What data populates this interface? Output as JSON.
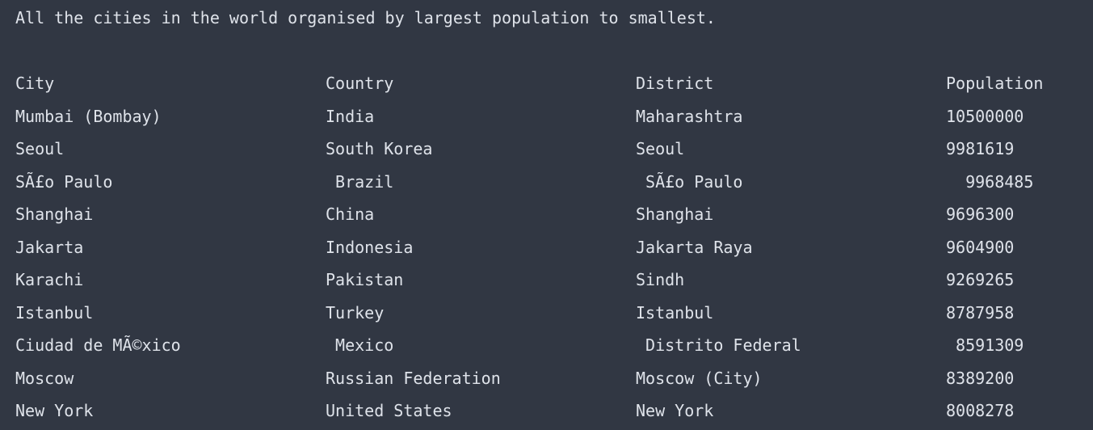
{
  "intro": "All the cities in the world organised by largest population to smallest.",
  "table": {
    "header": [
      "City",
      "Country",
      "District",
      "Population"
    ],
    "rows": [
      [
        "Mumbai (Bombay)",
        "India",
        "Maharashtra",
        "10500000"
      ],
      [
        "Seoul",
        "South Korea",
        "Seoul",
        "9981619"
      ],
      [
        "SÃ£o Paulo",
        " Brazil",
        " SÃ£o Paulo",
        "  9968485"
      ],
      [
        "Shanghai",
        "China",
        "Shanghai",
        "9696300"
      ],
      [
        "Jakarta",
        "Indonesia",
        "Jakarta Raya",
        "9604900"
      ],
      [
        "Karachi",
        "Pakistan",
        "Sindh",
        "9269265"
      ],
      [
        "Istanbul",
        "Turkey",
        "Istanbul",
        "8787958"
      ],
      [
        "Ciudad de MÃ©xico",
        " Mexico",
        " Distrito Federal",
        " 8591309"
      ],
      [
        "Moscow",
        "Russian Federation",
        "Moscow (City)",
        "8389200"
      ],
      [
        "New York",
        "United States",
        "New York",
        "8008278"
      ]
    ]
  }
}
